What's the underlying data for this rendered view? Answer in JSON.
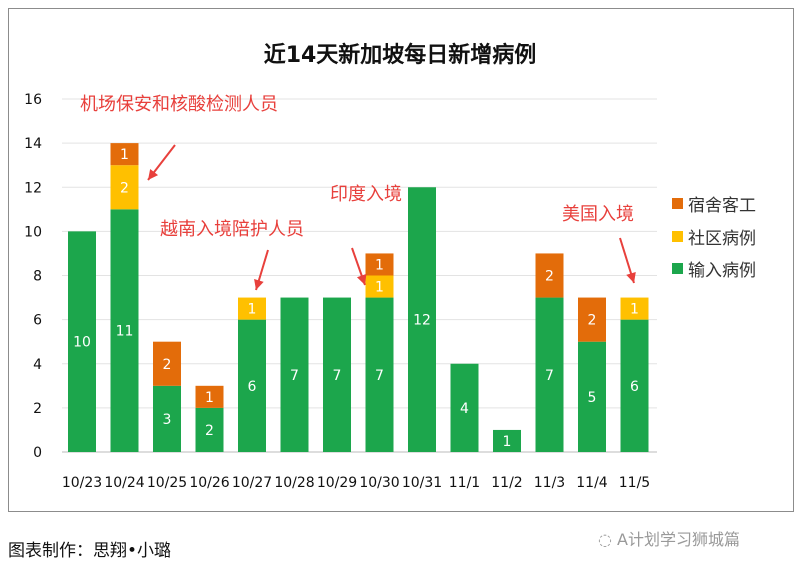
{
  "chart_data": {
    "type": "bar",
    "stacked": true,
    "title": "近14天新加坡每日新增病例",
    "categories": [
      "10/23",
      "10/24",
      "10/25",
      "10/26",
      "10/27",
      "10/28",
      "10/29",
      "10/30",
      "10/31",
      "11/1",
      "11/2",
      "11/3",
      "11/4",
      "11/5"
    ],
    "series": [
      {
        "name": "输入病例",
        "color": "#1ca64c",
        "values": [
          10,
          11,
          3,
          2,
          6,
          7,
          7,
          7,
          12,
          4,
          1,
          7,
          5,
          6
        ]
      },
      {
        "name": "社区病例",
        "color": "#ffc000",
        "values": [
          0,
          2,
          0,
          0,
          1,
          0,
          0,
          1,
          0,
          0,
          0,
          0,
          0,
          1
        ]
      },
      {
        "name": "宿舍客工",
        "color": "#e36c0a",
        "values": [
          0,
          1,
          2,
          1,
          0,
          0,
          0,
          1,
          0,
          0,
          0,
          2,
          2,
          0
        ]
      }
    ],
    "legend_order": [
      "宿舍客工",
      "社区病例",
      "输入病例"
    ],
    "legend_position": "right",
    "ylim": [
      0,
      16
    ],
    "yticks": [
      0,
      2,
      4,
      6,
      8,
      10,
      12,
      14,
      16
    ],
    "grid": true,
    "annotations": [
      {
        "text": "机场保安和核酸检测人员",
        "target": "10/24"
      },
      {
        "text": "越南入境陪护人员",
        "target": "10/27"
      },
      {
        "text": "印度入境",
        "target": "10/30"
      },
      {
        "text": "美国入境",
        "target": "11/5"
      }
    ],
    "annotation_color": "#e8403c"
  },
  "footer": {
    "credit": "图表制作：思翔•小璐",
    "watermark": "A计划学习狮城篇"
  }
}
